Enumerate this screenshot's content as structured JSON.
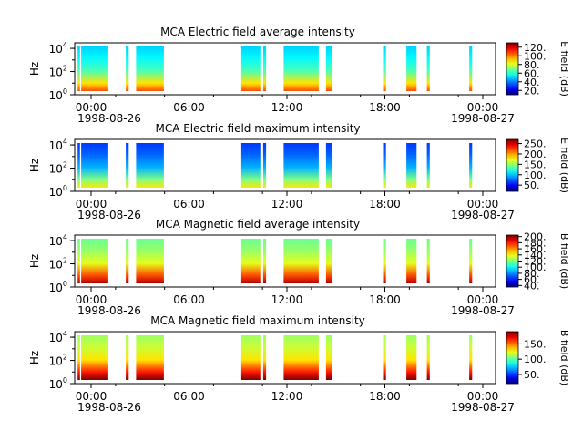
{
  "figure": {
    "background": "#ffffff"
  },
  "chart_data": [
    {
      "type": "heatmap",
      "title": "MCA  Electric field average intensity",
      "ylabel": "Hz",
      "y_scale": "log",
      "ylim": [
        1,
        30000
      ],
      "y_ticks": [
        {
          "base": "10",
          "exp": "0"
        },
        {
          "base": "10",
          "exp": "2"
        },
        {
          "base": "10",
          "exp": "4"
        }
      ],
      "x_ticks": [
        "00:00",
        "06:00",
        "12:00",
        "18:00",
        "00:00"
      ],
      "x_subticks": [
        "1998-08-26",
        "1998-08-27"
      ],
      "xlim": [
        "1998-08-26 00:00",
        "1998-08-27 00:00"
      ],
      "colorbar": {
        "label": "E field (dB)",
        "ticks": [
          "120.",
          "100.",
          "80.",
          "60.",
          "40.",
          "20."
        ],
        "range": [
          10,
          130
        ]
      },
      "segments": [
        {
          "start": "00:10",
          "end": "00:18",
          "level": 0.45
        },
        {
          "start": "00:22",
          "end": "01:55",
          "level": 0.55
        },
        {
          "start": "02:55",
          "end": "03:05",
          "level": 0.5
        },
        {
          "start": "03:30",
          "end": "05:05",
          "level": 0.6
        },
        {
          "start": "09:30",
          "end": "10:35",
          "level": 0.55
        },
        {
          "start": "10:45",
          "end": "10:55",
          "level": 0.5
        },
        {
          "start": "11:55",
          "end": "13:55",
          "level": 0.55
        },
        {
          "start": "14:20",
          "end": "14:40",
          "level": 0.5
        },
        {
          "start": "17:35",
          "end": "17:45",
          "level": 0.55
        },
        {
          "start": "18:55",
          "end": "19:30",
          "level": 0.5
        },
        {
          "start": "20:05",
          "end": "20:15",
          "level": 0.55
        },
        {
          "start": "22:30",
          "end": "22:40",
          "level": 0.5
        }
      ]
    },
    {
      "type": "heatmap",
      "title": "MCA  Electric field maximum intensity",
      "ylabel": "Hz",
      "y_scale": "log",
      "ylim": [
        1,
        30000
      ],
      "y_ticks": [
        {
          "base": "10",
          "exp": "0"
        },
        {
          "base": "10",
          "exp": "2"
        },
        {
          "base": "10",
          "exp": "4"
        }
      ],
      "x_ticks": [
        "00:00",
        "06:00",
        "12:00",
        "18:00",
        "00:00"
      ],
      "x_subticks": [
        "1998-08-26",
        "1998-08-27"
      ],
      "xlim": [
        "1998-08-26 00:00",
        "1998-08-27 00:00"
      ],
      "colorbar": {
        "label": "E field (dB)",
        "ticks": [
          "250.",
          "200.",
          "150.",
          "100.",
          "50."
        ],
        "range": [
          20,
          270
        ]
      },
      "segments": [
        {
          "start": "00:10",
          "end": "00:18",
          "level": 0.3
        },
        {
          "start": "00:22",
          "end": "01:55",
          "level": 0.3
        },
        {
          "start": "02:55",
          "end": "03:05",
          "level": 0.35
        },
        {
          "start": "03:30",
          "end": "05:05",
          "level": 0.25
        },
        {
          "start": "09:30",
          "end": "10:35",
          "level": 0.25
        },
        {
          "start": "10:45",
          "end": "10:55",
          "level": 0.3
        },
        {
          "start": "11:55",
          "end": "13:55",
          "level": 0.35
        },
        {
          "start": "14:20",
          "end": "14:40",
          "level": 0.35
        },
        {
          "start": "17:35",
          "end": "17:45",
          "level": 0.4
        },
        {
          "start": "18:55",
          "end": "19:30",
          "level": 0.25
        },
        {
          "start": "20:05",
          "end": "20:15",
          "level": 0.4
        },
        {
          "start": "22:30",
          "end": "22:40",
          "level": 0.35
        }
      ]
    },
    {
      "type": "heatmap",
      "title": "MCA  Magnetic field average intensity",
      "ylabel": "Hz",
      "y_scale": "log",
      "ylim": [
        1,
        30000
      ],
      "y_ticks": [
        {
          "base": "10",
          "exp": "0"
        },
        {
          "base": "10",
          "exp": "2"
        },
        {
          "base": "10",
          "exp": "4"
        }
      ],
      "x_ticks": [
        "00:00",
        "06:00",
        "12:00",
        "18:00",
        "00:00"
      ],
      "x_subticks": [
        "1998-08-26",
        "1998-08-27"
      ],
      "xlim": [
        "1998-08-26 00:00",
        "1998-08-27 00:00"
      ],
      "colorbar": {
        "label": "B field (dB)",
        "ticks": [
          "200.",
          "180.",
          "160.",
          "140.",
          "120.",
          "100.",
          "80.",
          "60.",
          "40."
        ],
        "range": [
          35,
          205
        ]
      },
      "segments": [
        {
          "start": "00:10",
          "end": "00:18",
          "level": 0.6
        },
        {
          "start": "00:22",
          "end": "01:55",
          "level": 0.6
        },
        {
          "start": "02:55",
          "end": "03:05",
          "level": 0.65
        },
        {
          "start": "03:30",
          "end": "05:05",
          "level": 0.6
        },
        {
          "start": "09:30",
          "end": "10:35",
          "level": 0.6
        },
        {
          "start": "10:45",
          "end": "10:55",
          "level": 0.6
        },
        {
          "start": "11:55",
          "end": "13:55",
          "level": 0.6
        },
        {
          "start": "14:20",
          "end": "14:40",
          "level": 0.65
        },
        {
          "start": "17:35",
          "end": "17:45",
          "level": 0.7
        },
        {
          "start": "18:55",
          "end": "19:30",
          "level": 0.65
        },
        {
          "start": "20:05",
          "end": "20:15",
          "level": 0.7
        },
        {
          "start": "22:30",
          "end": "22:40",
          "level": 0.7
        }
      ]
    },
    {
      "type": "heatmap",
      "title": "MCA  Magnetic field maximum intensity",
      "ylabel": "Hz",
      "y_scale": "log",
      "ylim": [
        1,
        30000
      ],
      "y_ticks": [
        {
          "base": "10",
          "exp": "0"
        },
        {
          "base": "10",
          "exp": "2"
        },
        {
          "base": "10",
          "exp": "4"
        }
      ],
      "x_ticks": [
        "00:00",
        "06:00",
        "12:00",
        "18:00",
        "00:00"
      ],
      "x_subticks": [
        "1998-08-26",
        "1998-08-27"
      ],
      "xlim": [
        "1998-08-26 00:00",
        "1998-08-27 00:00"
      ],
      "colorbar": {
        "label": "B field (dB)",
        "ticks": [
          "150.",
          "100.",
          "50."
        ],
        "range": [
          20,
          190
        ]
      },
      "segments": [
        {
          "start": "00:10",
          "end": "00:18",
          "level": 0.65
        },
        {
          "start": "00:22",
          "end": "01:55",
          "level": 0.65
        },
        {
          "start": "02:55",
          "end": "03:05",
          "level": 0.7
        },
        {
          "start": "03:30",
          "end": "05:05",
          "level": 0.65
        },
        {
          "start": "09:30",
          "end": "10:35",
          "level": 0.65
        },
        {
          "start": "10:45",
          "end": "10:55",
          "level": 0.65
        },
        {
          "start": "11:55",
          "end": "13:55",
          "level": 0.65
        },
        {
          "start": "14:20",
          "end": "14:40",
          "level": 0.7
        },
        {
          "start": "17:35",
          "end": "17:45",
          "level": 0.75
        },
        {
          "start": "18:55",
          "end": "19:30",
          "level": 0.6
        },
        {
          "start": "20:05",
          "end": "20:15",
          "level": 0.7
        },
        {
          "start": "22:30",
          "end": "22:40",
          "level": 0.7
        }
      ]
    }
  ]
}
